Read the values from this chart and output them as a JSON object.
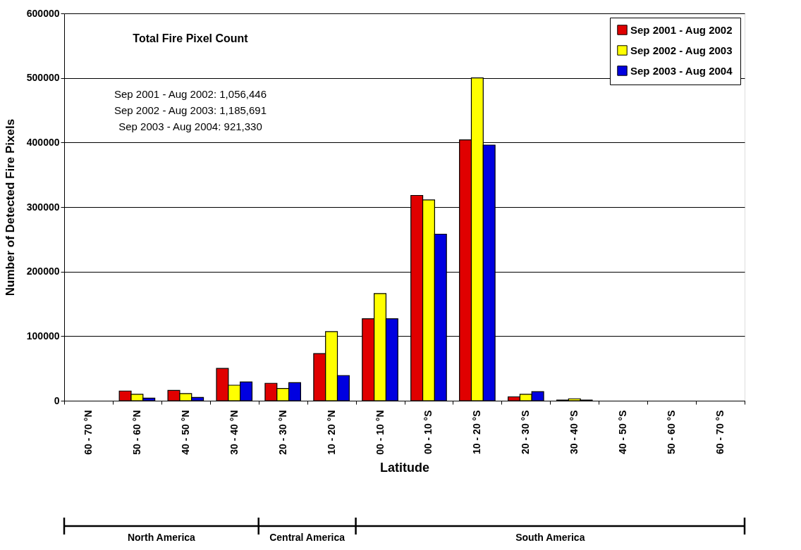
{
  "chart_data": {
    "type": "bar",
    "xlabel": "Latitude",
    "ylabel": "Number of Detected Fire Pixels",
    "categories": [
      "60 - 70 °N",
      "50 - 60 °N",
      "40 - 50 °N",
      "30 - 40 °N",
      "20 - 30 °N",
      "10 - 20 °N",
      "00 - 10 °N",
      "00 - 10 °S",
      "10 - 20 °S",
      "20 - 30 °S",
      "30 - 40 °S",
      "40 - 50 °S",
      "50 - 60 °S",
      "60 - 70 °S"
    ],
    "series": [
      {
        "name": "Sep 2001 - Aug 2002",
        "color": "#e00000",
        "values": [
          null,
          15000,
          16000,
          50000,
          27000,
          73000,
          127000,
          318000,
          404000,
          6000,
          1000,
          null,
          null,
          null
        ]
      },
      {
        "name": "Sep 2002 - Aug 2003",
        "color": "#ffff00",
        "values": [
          null,
          10000,
          11000,
          24000,
          19000,
          107000,
          166000,
          311000,
          500000,
          10000,
          3000,
          null,
          null,
          null
        ]
      },
      {
        "name": "Sep 2003 - Aug 2004",
        "color": "#0000e0",
        "values": [
          null,
          4000,
          5000,
          29000,
          28000,
          39000,
          127000,
          258000,
          396000,
          14000,
          1000,
          null,
          null,
          null
        ]
      }
    ],
    "ylim": [
      0,
      600000
    ],
    "yticks": [
      0,
      100000,
      200000,
      300000,
      400000,
      500000,
      600000
    ],
    "grid": "y",
    "legend": "top right",
    "annotations": [
      "Total Fire Pixel Count",
      "Sep 2001 - Aug 2002:  1,056,446",
      "Sep 2002 - Aug 2003:  1,185,691",
      "Sep 2003 - Aug 2004:      921,330",
      "North America",
      "Central America",
      "South America"
    ]
  }
}
